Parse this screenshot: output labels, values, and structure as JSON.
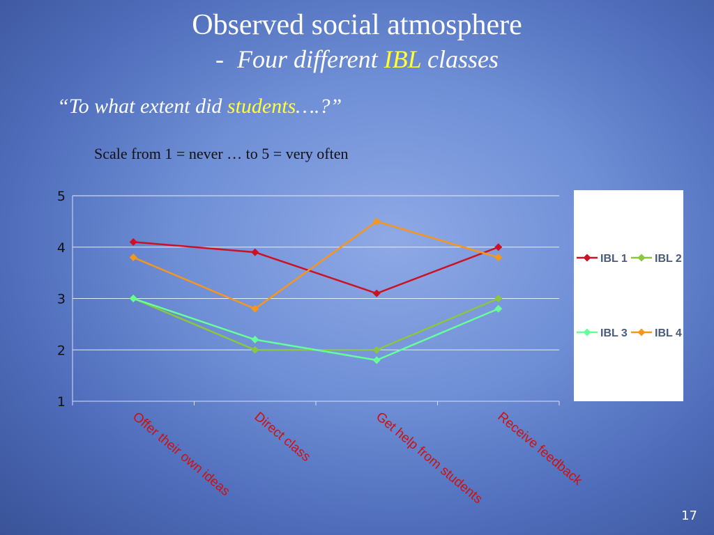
{
  "slide": {
    "title": "Observed social atmosphere",
    "subtitle_dash": "-",
    "subtitle_pre": "Four different",
    "subtitle_highlight": "IBL",
    "subtitle_post": "classes",
    "question_pre": "“To what extent did",
    "question_highlight": "students",
    "question_post": "….?”",
    "scale_text": "Scale from 1 = never …  to 5 = very often",
    "page_number": "17",
    "highlight_color": "#ffff33"
  },
  "chart_data": {
    "type": "line",
    "categories": [
      "Offer their own ideas",
      "Direct class",
      "Get help from students",
      "Receive feedback"
    ],
    "ylim": [
      1,
      5
    ],
    "yticks": [
      "1",
      "2",
      "3",
      "4",
      "5"
    ],
    "grid": true,
    "legend_position": "right",
    "marker": "diamond",
    "series": [
      {
        "name": "IBL 1",
        "color": "#cc1122",
        "values": [
          4.1,
          3.9,
          3.1,
          4.0
        ]
      },
      {
        "name": "IBL 2",
        "color": "#8cc63f",
        "values": [
          3.0,
          2.0,
          2.0,
          3.0
        ]
      },
      {
        "name": "IBL 3",
        "color": "#66ff99",
        "values": [
          3.0,
          2.2,
          1.8,
          2.8
        ]
      },
      {
        "name": "IBL 4",
        "color": "#f5961e",
        "values": [
          3.8,
          2.8,
          4.5,
          3.8
        ]
      }
    ]
  }
}
